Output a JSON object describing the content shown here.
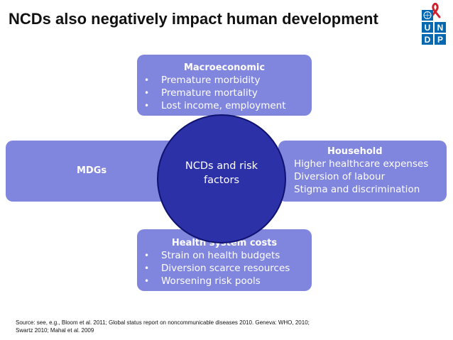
{
  "slide": {
    "title": "NCDs also negatively impact human development"
  },
  "logo": {
    "letters": [
      "U",
      "N",
      "D",
      "P"
    ],
    "icon": "undp-un-emblem-logo",
    "colors": {
      "blue": "#0468b1",
      "ribbon": "#d0202e"
    }
  },
  "diagram": {
    "center": {
      "label": "NCDs and risk factors"
    },
    "macroeconomic": {
      "title": "Macroeconomic",
      "items": [
        "Premature morbidity",
        "Premature mortality",
        "Lost income, employment"
      ]
    },
    "mdgs": {
      "title": "MDGs"
    },
    "household": {
      "title": "Household",
      "items": [
        "Higher healthcare expenses",
        "Diversion of labour",
        "Stigma and discrimination"
      ]
    },
    "health_system": {
      "title": "Health system costs",
      "items": [
        "Strain on health budgets",
        "Diversion scarce resources",
        "Worsening risk pools"
      ]
    },
    "bullet_glyph": "•",
    "colors": {
      "box": "#8085dd",
      "circle": "#2d31a8",
      "circle_border": "#0f1270",
      "text": "#ffffff"
    }
  },
  "footer": {
    "source": "Source: see, e.g., Bloom et al. 2011; Global status report on noncommunicable diseases 2010. Geneva: WHO, 2010; Swartz 2010; Mahal et al. 2009"
  }
}
